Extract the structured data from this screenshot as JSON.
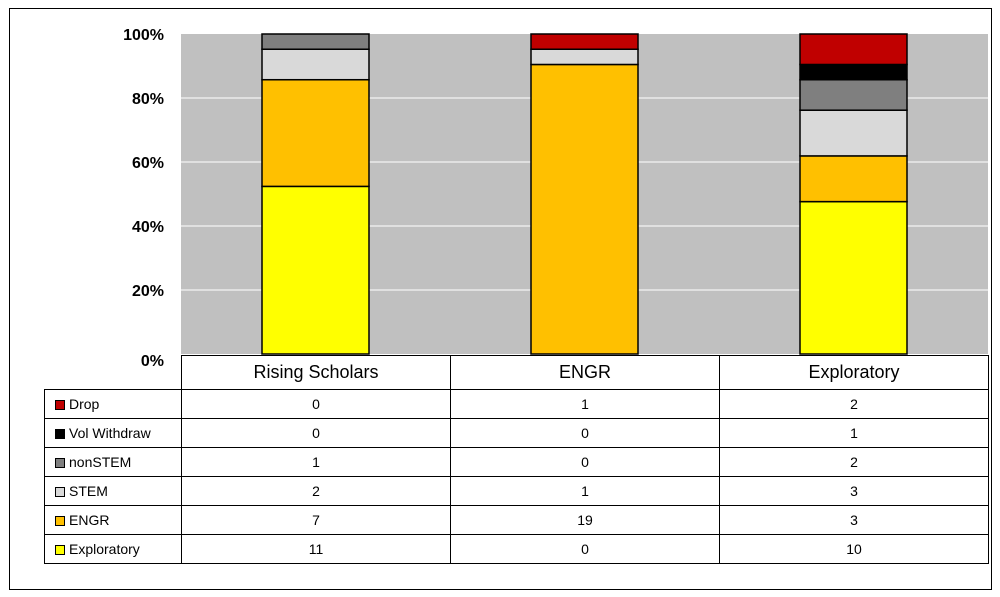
{
  "chart_data": {
    "type": "bar",
    "stacked": "percent",
    "categories": [
      "Rising Scholars",
      "ENGR",
      "Exploratory"
    ],
    "series": [
      {
        "name": "Exploratory",
        "color": "#ffff00",
        "values": [
          11,
          0,
          10
        ]
      },
      {
        "name": "ENGR",
        "color": "#ffc000",
        "values": [
          7,
          19,
          3
        ]
      },
      {
        "name": "STEM",
        "color": "#d9d9d9",
        "values": [
          2,
          1,
          3
        ]
      },
      {
        "name": "nonSTEM",
        "color": "#7f7f7f",
        "values": [
          1,
          0,
          2
        ]
      },
      {
        "name": "Vol Withdraw",
        "color": "#000000",
        "values": [
          0,
          0,
          1
        ]
      },
      {
        "name": "Drop",
        "color": "#c00000",
        "values": [
          0,
          1,
          2
        ]
      }
    ],
    "yticks": [
      "0%",
      "20%",
      "40%",
      "60%",
      "80%",
      "100%"
    ],
    "ylim": [
      0,
      100
    ],
    "grid": true,
    "plot_background": "#c0c0c0",
    "legend": "data-table"
  }
}
